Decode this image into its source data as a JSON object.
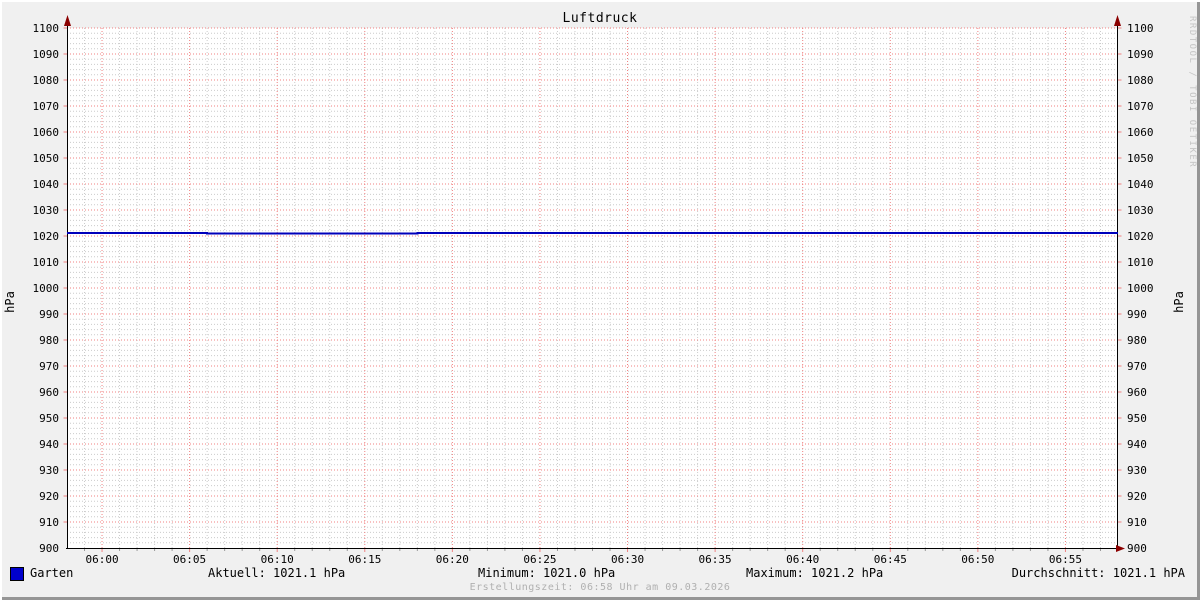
{
  "title": "Luftdruck",
  "watermark": "RRDTOOL / TOBI OETIKER",
  "footer": "Erstellungszeit: 06:58 Uhr am 09.03.2026",
  "colors": {
    "background": "#f0f0f0",
    "plot_background": "#ffffff",
    "grid_major": "#f08080",
    "grid_minor": "#cccccc",
    "axis": "#000000",
    "arrow": "#8b0000",
    "series_line": "#0000bb",
    "legend_swatch": "#0000cc",
    "footer_text": "#b0b0b0",
    "watermark_text": "#c4c4c4"
  },
  "legend": {
    "series_label": "Garten",
    "current": "Aktuell: 1021.1 hPa",
    "minimum": "Minimum: 1021.0 hPa",
    "maximum": "Maximum: 1021.2 hPa",
    "average": "Durchschnitt: 1021.1 hPA"
  },
  "chart_data": {
    "type": "line",
    "title": "Luftdruck",
    "ylabel_left": "hPa",
    "ylabel_right": "hPa",
    "ylim": [
      900,
      1100
    ],
    "y_tick_step": 10,
    "y_minor_step": 2,
    "y_ticks": [
      900,
      910,
      920,
      930,
      940,
      950,
      960,
      970,
      980,
      990,
      1000,
      1010,
      1020,
      1030,
      1040,
      1050,
      1060,
      1070,
      1080,
      1090,
      1100
    ],
    "x_start": "05:58",
    "x_end": "06:58",
    "x_total_minutes": 60,
    "x_minor_step_minutes": 1,
    "x_ticks": [
      {
        "min": 2,
        "label": "06:00"
      },
      {
        "min": 7,
        "label": "06:05"
      },
      {
        "min": 12,
        "label": "06:10"
      },
      {
        "min": 17,
        "label": "06:15"
      },
      {
        "min": 22,
        "label": "06:20"
      },
      {
        "min": 27,
        "label": "06:25"
      },
      {
        "min": 32,
        "label": "06:30"
      },
      {
        "min": 37,
        "label": "06:35"
      },
      {
        "min": 42,
        "label": "06:40"
      },
      {
        "min": 47,
        "label": "06:45"
      },
      {
        "min": 52,
        "label": "06:50"
      },
      {
        "min": 57,
        "label": "06:55"
      }
    ],
    "legend_position": "bottom",
    "grid": "on",
    "series": [
      {
        "name": "Garten",
        "color": "#0000bb",
        "unit": "hPa",
        "points_minutes_values": [
          [
            0,
            1021.1
          ],
          [
            8,
            1021.0
          ],
          [
            20,
            1021.2
          ],
          [
            24,
            1021.1
          ],
          [
            60,
            1021.1
          ]
        ]
      }
    ],
    "stats": {
      "current_hPa": 1021.1,
      "min_hPa": 1021.0,
      "max_hPa": 1021.2,
      "avg_hPa": 1021.1
    }
  }
}
